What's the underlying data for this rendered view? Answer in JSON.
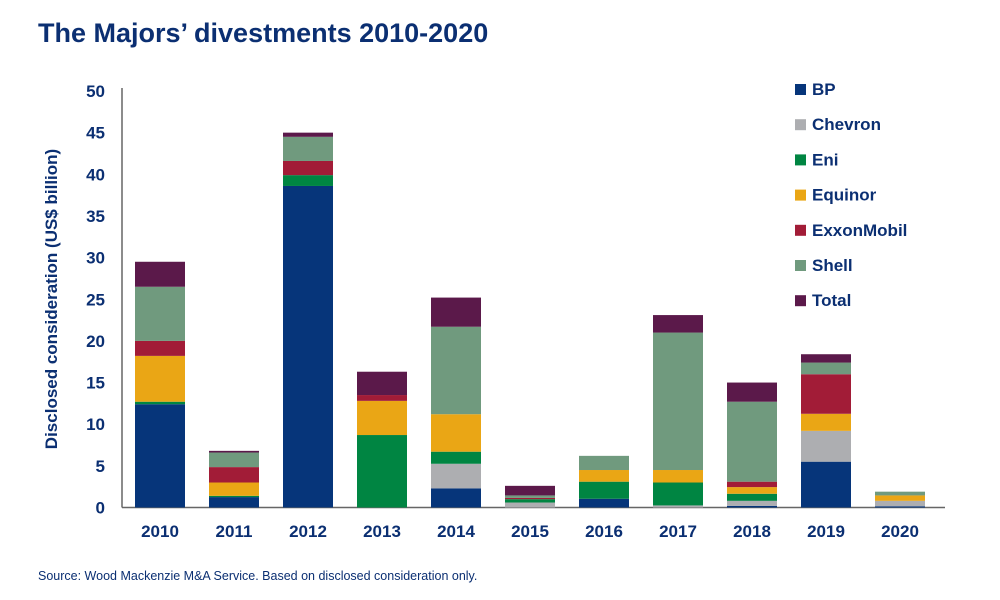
{
  "chart_data": {
    "type": "bar",
    "stacked": true,
    "title": "The Majors’ divestments 2010-2020",
    "ylabel": "Disclosed consideration (US$ billion)",
    "xlabel": "",
    "ylim": [
      0,
      50
    ],
    "yticks": [
      "0",
      "5",
      "10",
      "15",
      "20",
      "25",
      "30",
      "35",
      "40",
      "45",
      "50"
    ],
    "grid": false,
    "legend": "right",
    "categories": [
      "2010",
      "2011",
      "2012",
      "2013",
      "2014",
      "2015",
      "2016",
      "2017",
      "2018",
      "2019",
      "2020"
    ],
    "series": [
      {
        "name": "BP",
        "color": "#06357a",
        "values": [
          12.4,
          1.25,
          38.6,
          0,
          2.3,
          0,
          1.05,
          0,
          0.2,
          5.5,
          0.15
        ]
      },
      {
        "name": "Chevron",
        "color": "#adaeb1",
        "values": [
          0,
          0,
          0,
          0,
          2.95,
          0.6,
          0,
          0.25,
          0.6,
          3.7,
          0.65
        ]
      },
      {
        "name": "Eni",
        "color": "#008542",
        "values": [
          0.3,
          0.15,
          1.3,
          8.7,
          1.45,
          0.4,
          2.05,
          2.75,
          0.85,
          0,
          0
        ]
      },
      {
        "name": "Equinor",
        "color": "#eaa615",
        "values": [
          5.5,
          1.6,
          0,
          4.1,
          4.5,
          0,
          1.4,
          1.5,
          0.8,
          2.05,
          0.65
        ]
      },
      {
        "name": "ExxonMobil",
        "color": "#a21c37",
        "values": [
          1.8,
          1.85,
          1.7,
          0.7,
          0,
          0.15,
          0,
          0,
          0.65,
          4.75,
          0
        ]
      },
      {
        "name": "Shell",
        "color": "#709a7e",
        "values": [
          6.5,
          1.75,
          2.9,
          0,
          10.5,
          0.3,
          1.7,
          16.5,
          9.6,
          1.4,
          0.45
        ]
      },
      {
        "name": "Total",
        "color": "#5b194a",
        "values": [
          3.0,
          0.2,
          0.5,
          2.8,
          3.5,
          1.15,
          0,
          2.1,
          2.3,
          1.0,
          0
        ]
      }
    ]
  },
  "source": "Source: Wood Mackenzie M&A Service. Based on disclosed consideration only."
}
